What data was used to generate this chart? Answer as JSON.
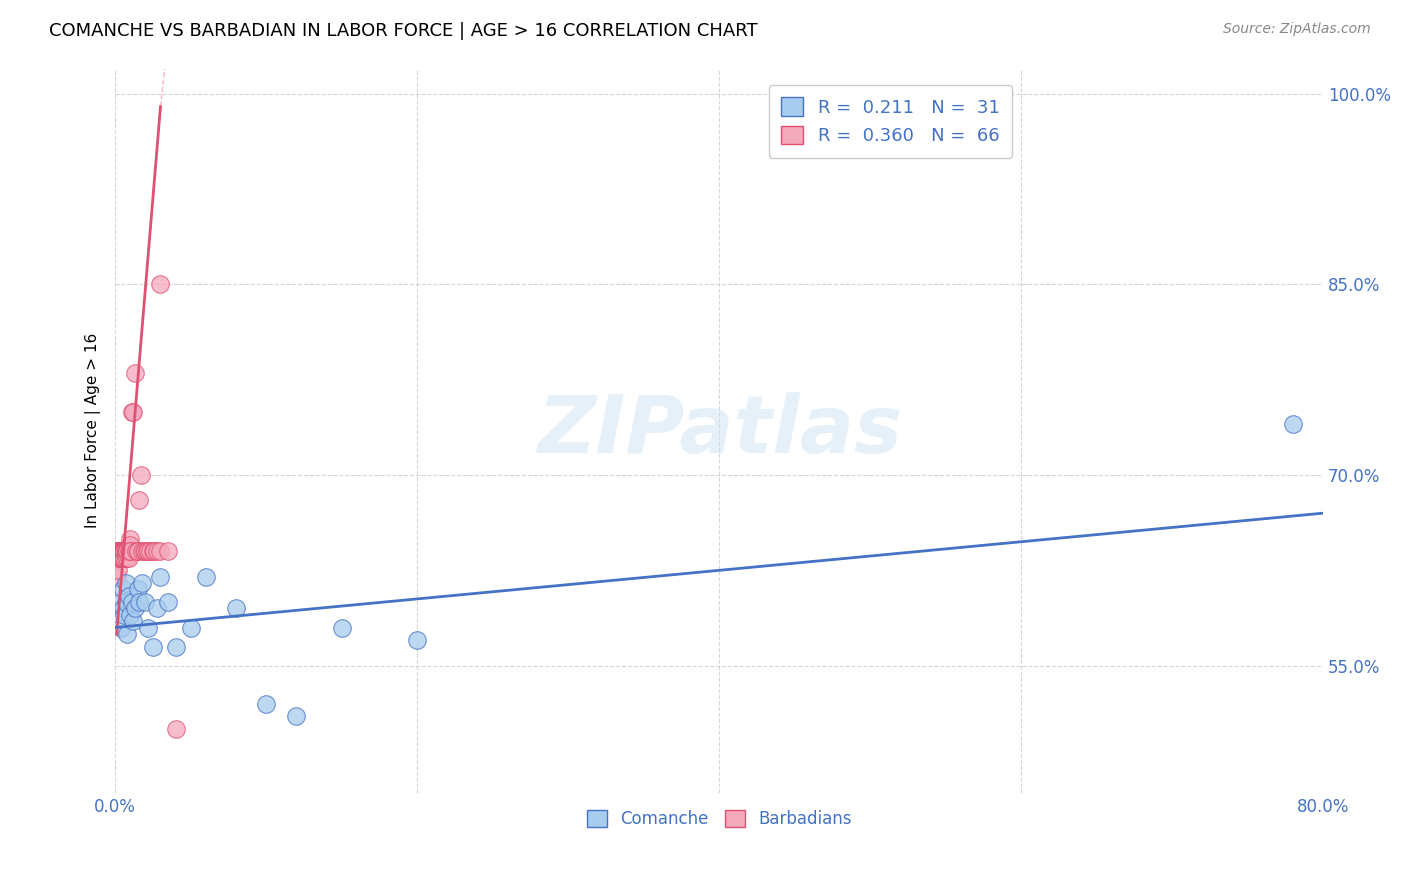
{
  "title": "COMANCHE VS BARBADIAN IN LABOR FORCE | AGE > 16 CORRELATION CHART",
  "source": "Source: ZipAtlas.com",
  "ylabel": "In Labor Force | Age > 16",
  "xlim": [
    0.0,
    0.8
  ],
  "ylim": [
    0.45,
    1.02
  ],
  "xticks": [
    0.0,
    0.2,
    0.4,
    0.6,
    0.8
  ],
  "xtick_labels": [
    "0.0%",
    "",
    "",
    "",
    "80.0%"
  ],
  "ytick_labels": [
    "55.0%",
    "70.0%",
    "85.0%",
    "100.0%"
  ],
  "yticks": [
    0.55,
    0.7,
    0.85,
    1.0
  ],
  "watermark": "ZIPatlas",
  "legend_R1": "0.211",
  "legend_N1": "31",
  "legend_R2": "0.360",
  "legend_N2": "66",
  "color_blue": "#A8CCEE",
  "color_pink": "#F4A8BC",
  "line_blue": "#4472C4",
  "line_pink": "#E05070",
  "comanche_x": [
    0.003,
    0.004,
    0.005,
    0.005,
    0.006,
    0.007,
    0.007,
    0.008,
    0.009,
    0.01,
    0.011,
    0.012,
    0.013,
    0.015,
    0.016,
    0.018,
    0.02,
    0.022,
    0.025,
    0.028,
    0.03,
    0.035,
    0.04,
    0.05,
    0.06,
    0.08,
    0.1,
    0.12,
    0.15,
    0.2,
    0.78
  ],
  "comanche_y": [
    0.6,
    0.58,
    0.595,
    0.61,
    0.59,
    0.6,
    0.615,
    0.575,
    0.605,
    0.59,
    0.6,
    0.585,
    0.595,
    0.61,
    0.6,
    0.615,
    0.6,
    0.58,
    0.565,
    0.595,
    0.62,
    0.6,
    0.565,
    0.58,
    0.62,
    0.595,
    0.52,
    0.51,
    0.58,
    0.57,
    0.74
  ],
  "barbadian_x": [
    0.001,
    0.001,
    0.002,
    0.002,
    0.002,
    0.002,
    0.003,
    0.003,
    0.003,
    0.003,
    0.003,
    0.003,
    0.004,
    0.004,
    0.004,
    0.004,
    0.004,
    0.004,
    0.004,
    0.005,
    0.005,
    0.005,
    0.005,
    0.005,
    0.005,
    0.005,
    0.006,
    0.006,
    0.006,
    0.006,
    0.006,
    0.007,
    0.007,
    0.007,
    0.007,
    0.007,
    0.008,
    0.008,
    0.008,
    0.009,
    0.009,
    0.01,
    0.01,
    0.01,
    0.01,
    0.011,
    0.012,
    0.013,
    0.014,
    0.015,
    0.015,
    0.016,
    0.017,
    0.018,
    0.019,
    0.02,
    0.021,
    0.022,
    0.023,
    0.025,
    0.026,
    0.028,
    0.03,
    0.035,
    0.04,
    0.03
  ],
  "barbadian_y": [
    0.64,
    0.62,
    0.64,
    0.625,
    0.64,
    0.635,
    0.64,
    0.635,
    0.64,
    0.64,
    0.635,
    0.64,
    0.64,
    0.635,
    0.64,
    0.64,
    0.635,
    0.64,
    0.64,
    0.64,
    0.635,
    0.64,
    0.64,
    0.64,
    0.635,
    0.64,
    0.64,
    0.64,
    0.64,
    0.635,
    0.64,
    0.64,
    0.635,
    0.64,
    0.64,
    0.64,
    0.64,
    0.635,
    0.64,
    0.64,
    0.635,
    0.65,
    0.645,
    0.64,
    0.64,
    0.75,
    0.75,
    0.78,
    0.64,
    0.64,
    0.64,
    0.68,
    0.7,
    0.64,
    0.64,
    0.64,
    0.64,
    0.64,
    0.64,
    0.64,
    0.64,
    0.64,
    0.64,
    0.64,
    0.5,
    0.85
  ],
  "pink_line_x": [
    0.001,
    0.03
  ],
  "pink_line_y": [
    0.575,
    0.99
  ],
  "blue_line_x": [
    0.0,
    0.8
  ],
  "blue_line_y": [
    0.58,
    0.67
  ]
}
